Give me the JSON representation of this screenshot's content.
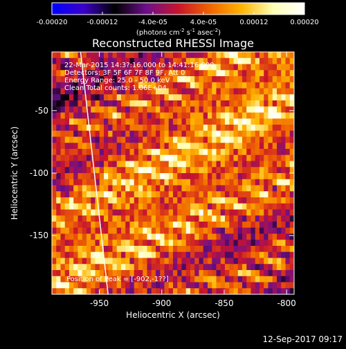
{
  "window_timestamp": "12-Sep-2017 09:17",
  "colors": {
    "background": "#000000",
    "foreground": "#ffffff",
    "colormap": [
      "#0000ff",
      "#3c00c8",
      "#000000",
      "#6e0f8c",
      "#c8142d",
      "#f06400",
      "#ffb400",
      "#ffffb4",
      "#ffffff"
    ]
  },
  "colorbar": {
    "ticks": [
      "-0.00020",
      "-0.00012",
      "-4.0e-05",
      "4.0e-05",
      "0.00012",
      "0.00020"
    ],
    "tick_values": [
      -0.0002,
      -0.00012,
      -4e-05,
      4e-05,
      0.00012,
      0.0002
    ],
    "range": [
      -0.0002,
      0.0002
    ],
    "units_parts": [
      "(photons cm",
      "-2",
      " s",
      "-1",
      " asec",
      "-2",
      ")"
    ]
  },
  "chart_data": {
    "type": "heatmap",
    "title": "Reconstructed RHESSI Image",
    "xlabel": "Heliocentric X (arcsec)",
    "ylabel": "Heliocentric Y (arcsec)",
    "xlim": [
      -988,
      -794
    ],
    "ylim": [
      -197,
      -3
    ],
    "xticks": [
      -950,
      -900,
      -850,
      -800
    ],
    "xtick_labels": [
      "-950",
      "-900",
      "-850",
      "-800"
    ],
    "yticks": [
      -150,
      -100,
      -50
    ],
    "ytick_labels": [
      "-150",
      "-100",
      "-50"
    ],
    "grid": false,
    "limb_line": {
      "x": [
        -965,
        -943
      ],
      "y": [
        -3,
        -197
      ]
    },
    "info_lines": [
      "22-Mar-2015 14:3?:16.000 to 14:41:16.000",
      "Detectors: 3F 5F 6F 7F 8F 9F, Att 0",
      "Energy Range: 25.0 - 50.0 keV",
      "Clean    Total counts: 1.06E+04"
    ],
    "peak_label": "Position of Peak = [-902,-1??]"
  }
}
